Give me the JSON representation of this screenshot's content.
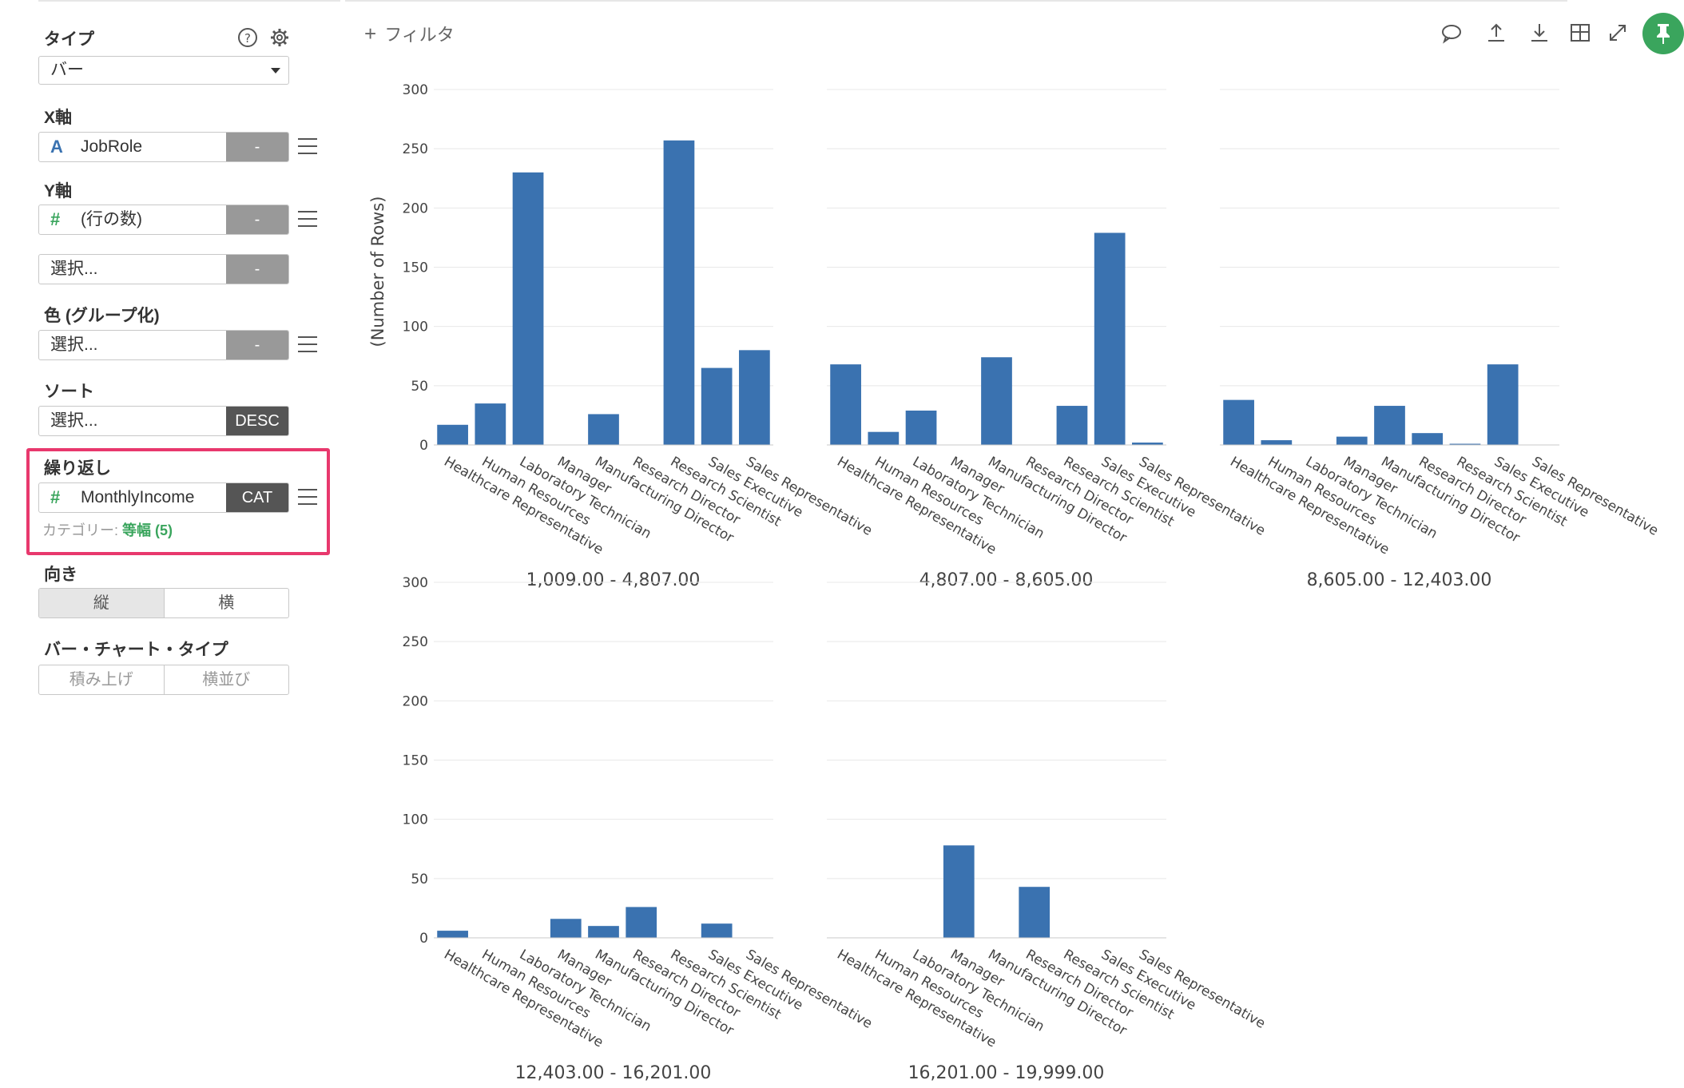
{
  "sidebar": {
    "type": {
      "title": "タイプ",
      "value": "バー",
      "help_icon": "question-circle-icon",
      "settings_icon": "gear-icon"
    },
    "x_axis": {
      "title": "X軸",
      "icon": "A",
      "field": "JobRole",
      "agg": "-"
    },
    "y_axis": {
      "title": "Y軸",
      "icon": "#",
      "field": "(行の数)",
      "agg": "-"
    },
    "y_axis_extra": {
      "placeholder": "選択...",
      "agg": "-"
    },
    "color": {
      "title": "色 (グループ化)",
      "placeholder": "選択...",
      "agg": "-"
    },
    "sort": {
      "title": "ソート",
      "placeholder": "選択...",
      "order": "DESC"
    },
    "repeat": {
      "title": "繰り返し",
      "icon": "#",
      "field": "MonthlyIncome",
      "mode": "CAT",
      "category_label": "カテゴリー:",
      "category_value": "等幅 (5)"
    },
    "orientation": {
      "title": "向き",
      "options": [
        "縦",
        "横"
      ],
      "selected": "縦"
    },
    "bar_type": {
      "title": "バー・チャート・タイプ",
      "options": [
        "積み上げ",
        "横並び"
      ]
    }
  },
  "toolbar": {
    "filter_label": "フィルタ",
    "icons": [
      "comment-icon",
      "upload-icon",
      "download-icon",
      "table-icon",
      "expand-icon",
      "pin-icon"
    ]
  },
  "colors": {
    "bar": "#3a72b0",
    "accent": "#3aa55d",
    "highlight": "#e8386d"
  },
  "chart_data": {
    "type": "bar",
    "facet_by": "MonthlyIncome",
    "ylabel": "(Number of Rows)",
    "ylim": [
      0,
      300
    ],
    "yticks": [
      0,
      50,
      100,
      150,
      200,
      250,
      300
    ],
    "categories": [
      "Healthcare Representative",
      "Human Resources",
      "Laboratory Technician",
      "Manager",
      "Manufacturing Director",
      "Research Director",
      "Research Scientist",
      "Sales Executive",
      "Sales Representative"
    ],
    "panels": [
      {
        "label": "1,009.00 - 4,807.00",
        "values": [
          17,
          35,
          230,
          0,
          26,
          0,
          257,
          65,
          80
        ]
      },
      {
        "label": "4,807.00 - 8,605.00",
        "values": [
          68,
          11,
          29,
          0,
          74,
          0,
          33,
          179,
          2
        ]
      },
      {
        "label": "8,605.00 - 12,403.00",
        "values": [
          38,
          4,
          0,
          7,
          33,
          10,
          1,
          68,
          0
        ]
      },
      {
        "label": "12,403.00 - 16,201.00",
        "values": [
          6,
          0,
          0,
          16,
          10,
          26,
          0,
          12,
          0
        ]
      },
      {
        "label": "16,201.00 - 19,999.00",
        "values": [
          0,
          0,
          0,
          78,
          0,
          43,
          0,
          0,
          0
        ]
      }
    ]
  }
}
